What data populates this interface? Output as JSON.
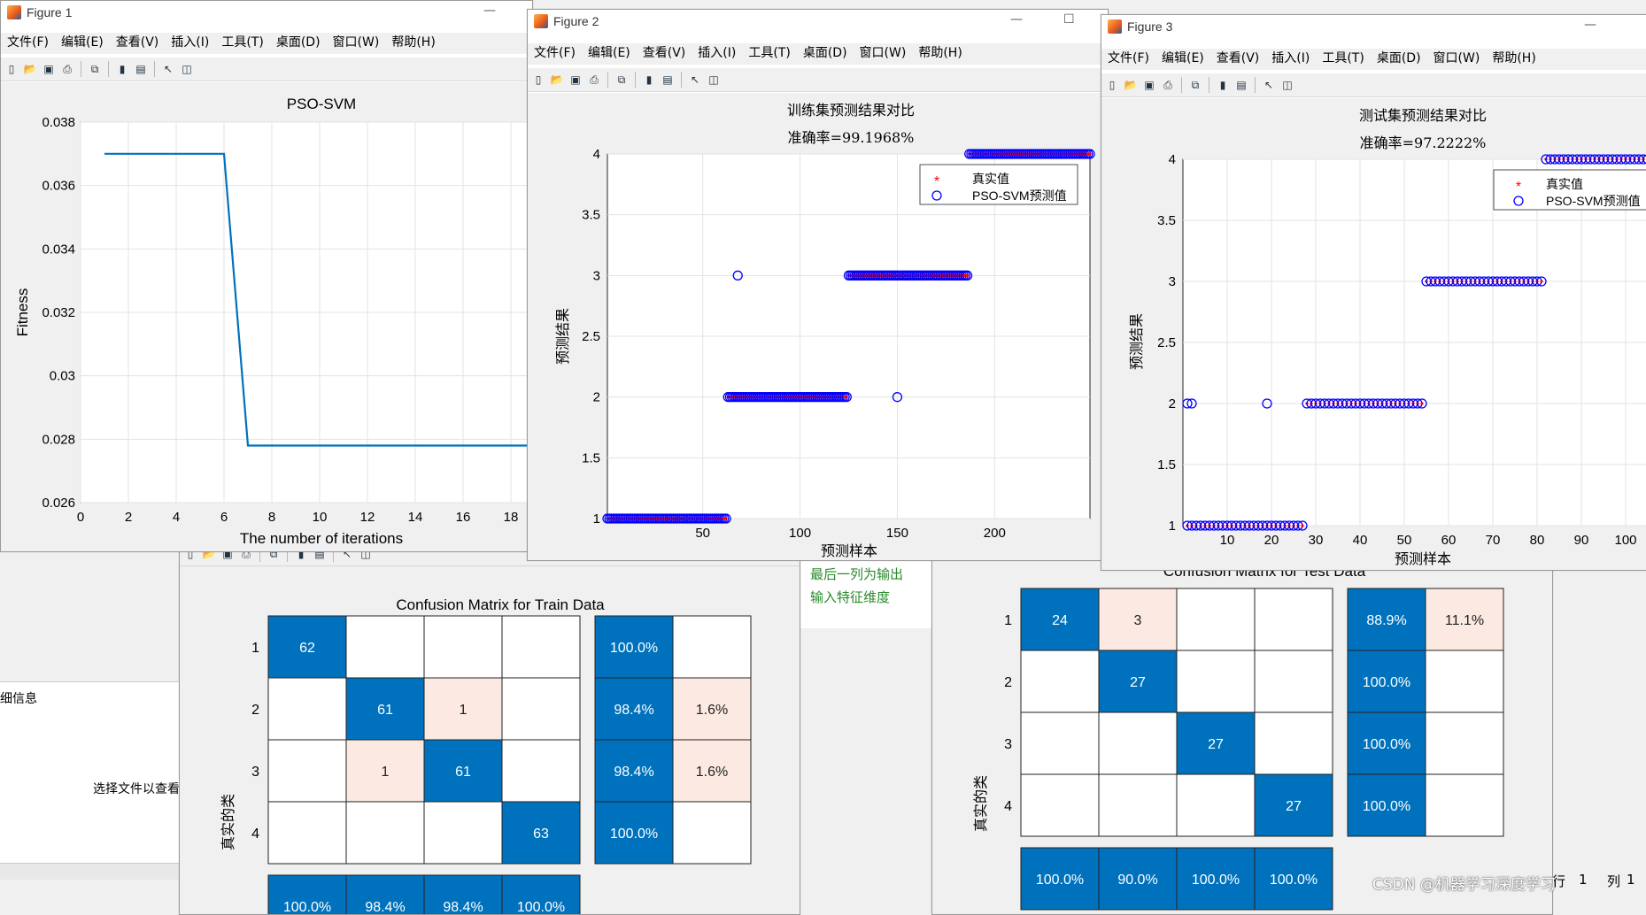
{
  "menu_items": [
    "文件(F)",
    "编辑(E)",
    "查看(V)",
    "插入(I)",
    "工具(T)",
    "桌面(D)",
    "窗口(W)",
    "帮助(H)"
  ],
  "fig1": {
    "title": "Figure 1",
    "chart_data": {
      "type": "line",
      "title": "PSO-SVM",
      "xlabel": "The number of iterations",
      "ylabel": "Fitness",
      "xlim": [
        0,
        20
      ],
      "ylim": [
        0.026,
        0.038
      ],
      "x_ticks": [
        "0",
        "2",
        "4",
        "6",
        "8",
        "10",
        "12",
        "14",
        "16",
        "18"
      ],
      "y_ticks": [
        "0.026",
        "0.028",
        "0.03",
        "0.032",
        "0.034",
        "0.036",
        "0.038"
      ],
      "x": [
        1,
        6,
        7,
        20
      ],
      "y": [
        0.037,
        0.037,
        0.0278,
        0.0278
      ],
      "grid": true,
      "color": "#0072bd"
    }
  },
  "fig2": {
    "title": "Figure 2",
    "chart_data": {
      "type": "scatter",
      "title_line1": "训练集预测结果对比",
      "title_line2": "准确率=99.1968%",
      "xlabel": "预测样本",
      "ylabel": "预测结果",
      "xlim": [
        1,
        249
      ],
      "ylim": [
        1,
        4
      ],
      "x_ticks": [
        "50",
        "100",
        "150",
        "200"
      ],
      "y_ticks": [
        "1",
        "1.5",
        "2",
        "2.5",
        "3",
        "3.5",
        "4"
      ],
      "legend": [
        "真实值",
        "PSO-SVM预测值"
      ],
      "legend_position": "top-right",
      "true_color": "#ff0000",
      "pred_color": "#0000ff",
      "segments": [
        {
          "from": 1,
          "to": 62,
          "y": 1
        },
        {
          "from": 63,
          "to": 124,
          "y": 2
        },
        {
          "from": 125,
          "to": 186,
          "y": 3
        },
        {
          "from": 187,
          "to": 249,
          "y": 4
        }
      ],
      "outliers": [
        {
          "x": 68,
          "y": 3
        },
        {
          "x": 150,
          "y": 2
        }
      ]
    }
  },
  "fig3": {
    "title": "Figure 3",
    "chart_data": {
      "type": "scatter",
      "title_line1": "测试集预测结果对比",
      "title_line2": "准确率=97.2222%",
      "xlabel": "预测样本",
      "ylabel": "预测结果",
      "xlim": [
        0,
        108
      ],
      "ylim": [
        1,
        4
      ],
      "x_ticks": [
        "10",
        "20",
        "30",
        "40",
        "50",
        "60",
        "70",
        "80",
        "90",
        "100"
      ],
      "y_ticks": [
        "1",
        "1.5",
        "2",
        "2.5",
        "3",
        "3.5",
        "4"
      ],
      "legend": [
        "真实值",
        "PSO-SVM预测值"
      ],
      "legend_position": "top-right",
      "segments": [
        {
          "from": 1,
          "to": 27,
          "y": 1
        },
        {
          "from": 28,
          "to": 54,
          "y": 2
        },
        {
          "from": 55,
          "to": 81,
          "y": 3
        },
        {
          "from": 82,
          "to": 108,
          "y": 4
        }
      ],
      "outliers": [
        {
          "x": 1,
          "y": 2
        },
        {
          "x": 2,
          "y": 2
        },
        {
          "x": 19,
          "y": 2
        }
      ]
    }
  },
  "cm_train": {
    "title": "Confusion Matrix for Train Data",
    "ylabel": "真实的类",
    "row_labels": [
      "1",
      "2",
      "3",
      "4"
    ],
    "matrix": [
      [
        "62",
        "",
        "",
        ""
      ],
      [
        "",
        "61",
        "1",
        ""
      ],
      [
        "",
        "1",
        "61",
        ""
      ],
      [
        "",
        "",
        "",
        "63"
      ]
    ],
    "row_summary": [
      [
        "100.0%",
        ""
      ],
      [
        "98.4%",
        "1.6%"
      ],
      [
        "98.4%",
        "1.6%"
      ],
      [
        "100.0%",
        ""
      ]
    ],
    "col_summary": [
      "100.0%",
      "98.4%",
      "98.4%",
      "100.0%"
    ]
  },
  "cm_test": {
    "title": "Confusion Matrix for Test Data",
    "ylabel": "真实的类",
    "row_labels": [
      "1",
      "2",
      "3",
      "4"
    ],
    "matrix": [
      [
        "24",
        "3",
        "",
        ""
      ],
      [
        "",
        "27",
        "",
        ""
      ],
      [
        "",
        "",
        "27",
        ""
      ],
      [
        "",
        "",
        "",
        "27"
      ]
    ],
    "row_summary": [
      [
        "88.9%",
        "11.1%"
      ],
      [
        "100.0%",
        ""
      ],
      [
        "100.0%",
        ""
      ],
      [
        "100.0%",
        ""
      ]
    ],
    "col_summary": [
      "100.0%",
      "90.0%",
      "100.0%",
      "100.0%"
    ]
  },
  "editor": {
    "line1": "最后一列为输出",
    "line2": "输入特征维度"
  },
  "details": {
    "header": "细信息",
    "placeholder": "选择文件以查看"
  },
  "status": {
    "row": "行",
    "row_val": "1",
    "col": "列",
    "col_val": "1"
  },
  "watermark": "CSDN @机器学习深度学习"
}
